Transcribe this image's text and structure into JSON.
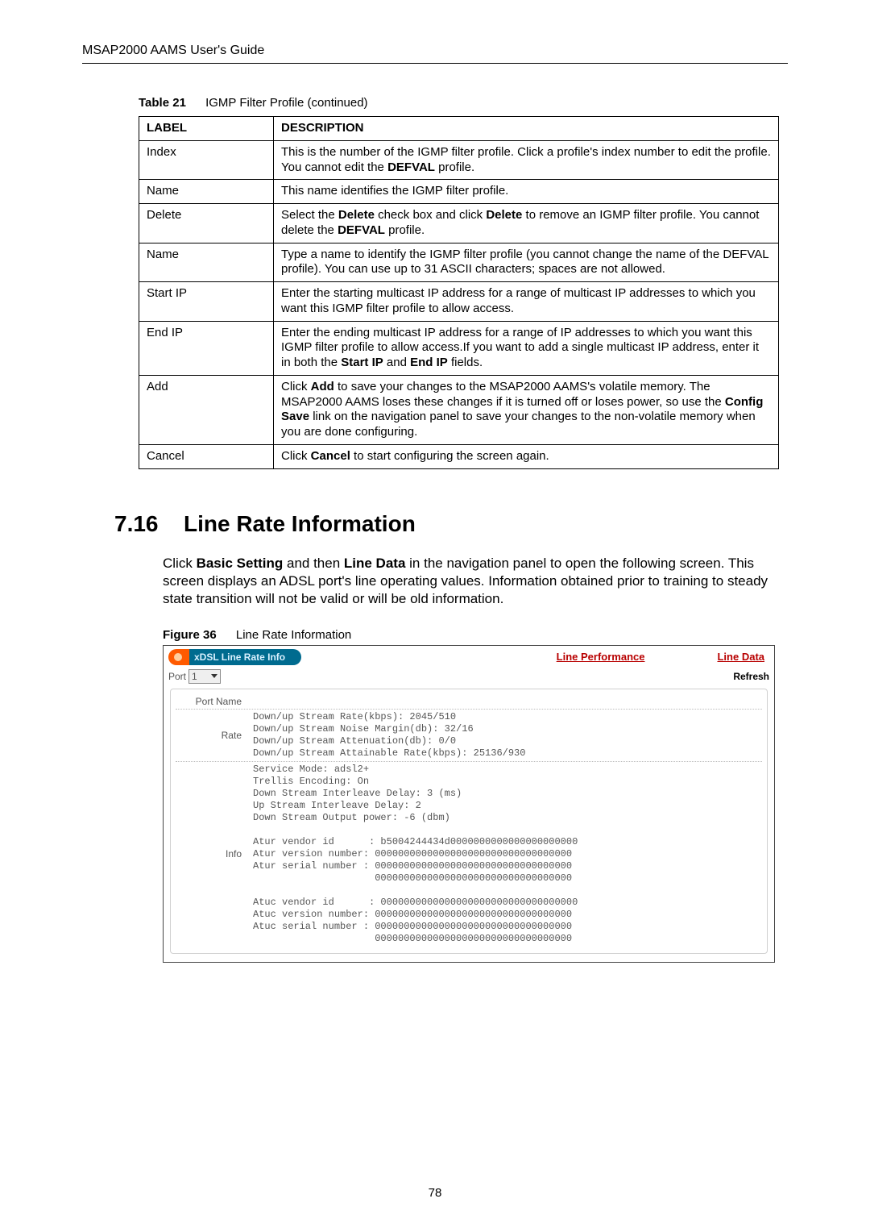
{
  "header": {
    "title": "MSAP2000 AAMS User's Guide"
  },
  "table": {
    "caption_label": "Table 21",
    "caption_text": "IGMP Filter Profile (continued)",
    "col_label": "LABEL",
    "col_desc": "DESCRIPTION",
    "rows": [
      {
        "label": "Index",
        "desc": "This is the number of the IGMP filter profile. Click a profile's index number to edit the profile. You cannot edit the <b>DEFVAL</b> profile."
      },
      {
        "label": "Name",
        "desc": "This name identifies the IGMP filter profile."
      },
      {
        "label": "Delete",
        "desc": "Select the <b>Delete</b> check box and click <b>Delete</b> to remove an IGMP filter profile. You cannot delete the <b>DEFVAL</b> profile."
      },
      {
        "label": "Name",
        "desc": "Type a name to identify the IGMP filter profile (you cannot change the name of the DEFVAL profile). You can use up to 31 ASCII characters; spaces are not allowed."
      },
      {
        "label": "Start IP",
        "desc": "Enter the starting multicast IP address for a range of multicast IP addresses to which you want this IGMP filter profile to allow access."
      },
      {
        "label": "End IP",
        "desc": "Enter the ending multicast IP address for a range of IP addresses to which you want this IGMP filter profile to allow access.If you want to add a single multicast IP address, enter it in both the <b>Start IP</b> and <b>End IP</b> fields."
      },
      {
        "label": "Add",
        "desc": "Click <b>Add</b> to save your changes to the MSAP2000 AAMS's volatile memory. The MSAP2000 AAMS loses these changes if it is turned off or loses power, so use the <b>Config Save</b> link on the navigation panel to save your changes to the non-volatile memory when you are done configuring."
      },
      {
        "label": "Cancel",
        "desc": "Click <b>Cancel</b> to start configuring the screen again."
      }
    ]
  },
  "section": {
    "number": "7.16",
    "title": "Line Rate Information",
    "paragraph": "Click <b>Basic Setting</b> and then <b>Line Data</b> in the navigation panel to open the following screen. This screen displays an ADSL port's line operating values. Information obtained prior to training to steady state transition will not be valid or will be old information."
  },
  "figure": {
    "caption_label": "Figure 36",
    "caption_text": "Line Rate Information"
  },
  "screenshot": {
    "tab_title": "xDSL Line Rate Info",
    "link_performance": "Line Performance",
    "link_data": "Line Data",
    "port_label": "Port",
    "port_value": "1",
    "refresh": "Refresh",
    "rows": {
      "portname_label": "Port Name",
      "portname_value": "",
      "rate_label": "Rate",
      "rate_value": "Down/up Stream Rate(kbps): 2045/510\nDown/up Stream Noise Margin(db): 32/16\nDown/up Stream Attenuation(db): 0/0\nDown/up Stream Attainable Rate(kbps): 25136/930",
      "info_label": "Info",
      "info_value": "Service Mode: adsl2+\nTrellis Encoding: On\nDown Stream Interleave Delay: 3 (ms)\nUp Stream Interleave Delay: 2\nDown Stream Output power: -6 (dbm)\n\nAtur vendor id      : b5004244434d0000000000000000000000\nAtur version number: 0000000000000000000000000000000000\nAtur serial number : 0000000000000000000000000000000000\n                     0000000000000000000000000000000000\n\nAtuc vendor id      : 0000000000000000000000000000000000\nAtuc version number: 0000000000000000000000000000000000\nAtuc serial number : 0000000000000000000000000000000000\n                     0000000000000000000000000000000000"
    }
  },
  "page_number": "78"
}
